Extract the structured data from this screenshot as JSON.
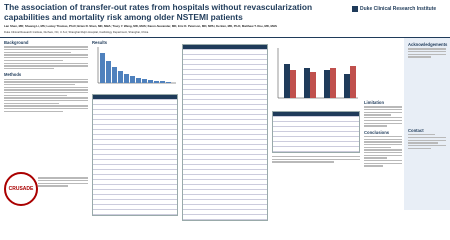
{
  "header": {
    "title": "The association of transfer-out rates from hospitals without revascularization capabilities and mortality risk among older NSTEMI patients",
    "authors": "Lan Shen, MD; Shuang Li, MS; Lesley Thomas, Ph.D; Brian R. Shen, MD, MBA; Tracy Y. Wang, MD, MHS; Karen Alexander, MD, Eric D. Peterson, MD, MPH, Ke Ben, MD, Ph.D, Matthew T. Roe, MD, MHS",
    "affiliation": "Duke Clinical Research Institute, Durham, NC, U.S.A; Shanghai Ruijin Hospital, Cardiology Department, Shanghai, China",
    "logo": "Duke Clinical Research Institute"
  },
  "sections": {
    "background": "Background",
    "methods": "Methods",
    "results": "Results",
    "limitation": "Limitation",
    "conclusions": "Conclusions",
    "acknowledgements": "Acknowledgements",
    "contact": "Contact"
  },
  "logo_bottom": "CRUSADE"
}
